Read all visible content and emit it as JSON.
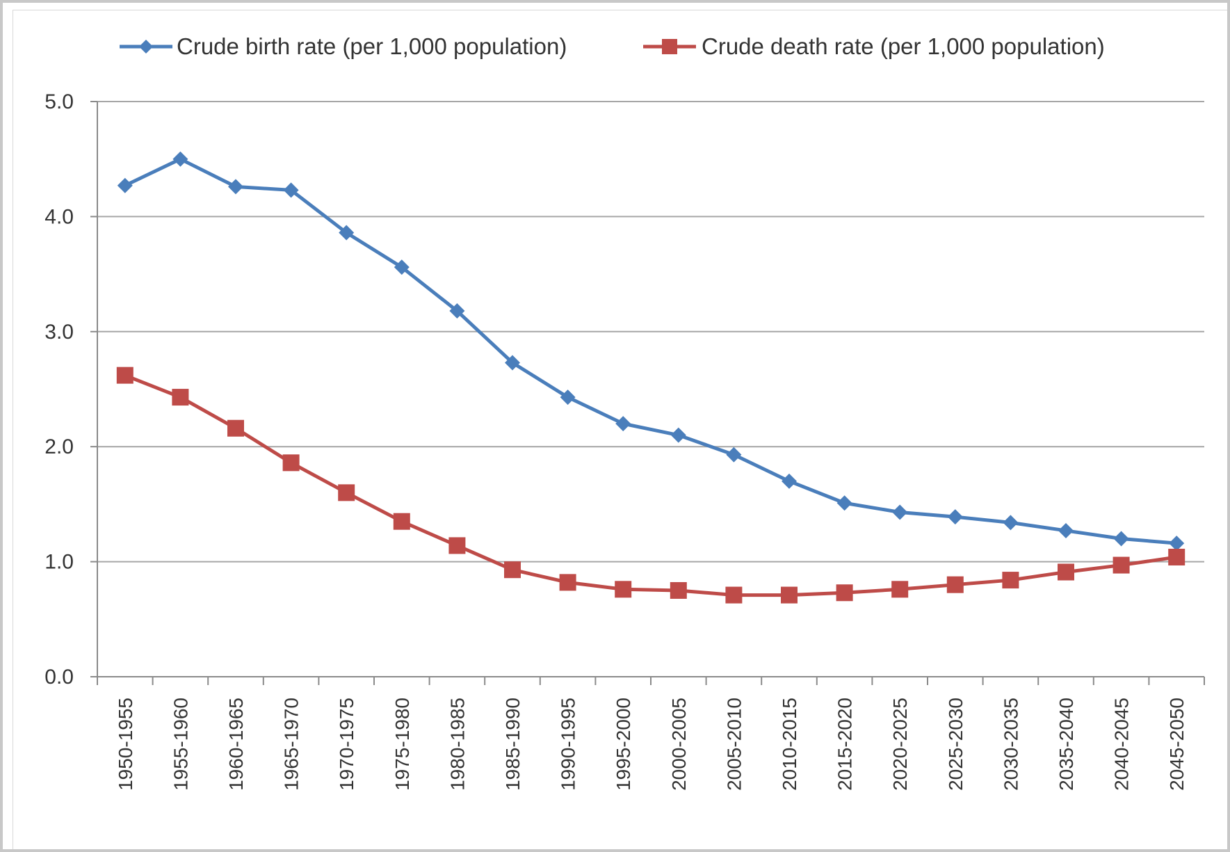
{
  "chart_data": {
    "type": "line",
    "categories": [
      "1950-1955",
      "1955-1960",
      "1960-1965",
      "1965-1970",
      "1970-1975",
      "1975-1980",
      "1980-1985",
      "1985-1990",
      "1990-1995",
      "1995-2000",
      "2000-2005",
      "2005-2010",
      "2010-2015",
      "2015-2020",
      "2020-2025",
      "2025-2030",
      "2030-2035",
      "2035-2040",
      "2040-2045",
      "2045-2050"
    ],
    "series": [
      {
        "name": "Crude birth rate (per 1,000 population)",
        "color": "#4a7ebb",
        "marker": "diamond",
        "values": [
          4.27,
          4.5,
          4.26,
          4.23,
          3.86,
          3.56,
          3.18,
          2.73,
          2.43,
          2.2,
          2.1,
          1.93,
          1.7,
          1.51,
          1.43,
          1.39,
          1.34,
          1.27,
          1.2,
          1.16
        ]
      },
      {
        "name": "Crude death rate (per 1,000 population)",
        "color": "#be4b48",
        "marker": "square",
        "values": [
          2.62,
          2.43,
          2.16,
          1.86,
          1.6,
          1.35,
          1.14,
          0.93,
          0.82,
          0.76,
          0.75,
          0.71,
          0.71,
          0.73,
          0.76,
          0.8,
          0.84,
          0.91,
          0.97,
          1.04
        ]
      }
    ],
    "yticks": [
      "0.0",
      "1.0",
      "2.0",
      "3.0",
      "4.0",
      "5.0"
    ],
    "ylim": [
      0,
      5
    ],
    "grid": true,
    "legend": "top"
  }
}
